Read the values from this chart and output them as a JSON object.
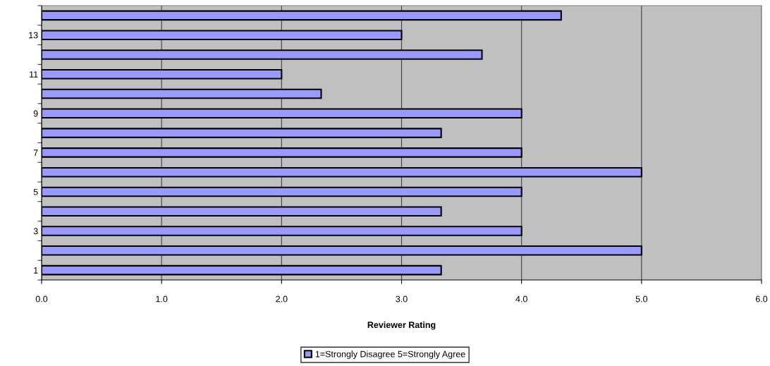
{
  "chart_data": {
    "type": "bar",
    "orientation": "horizontal",
    "xlabel": "Reviewer Rating",
    "categories": [
      null,
      "13",
      null,
      "11",
      null,
      "9",
      null,
      "7",
      null,
      "5",
      null,
      "3",
      null,
      "1"
    ],
    "series": [
      {
        "name": "1=Strongly Disagree 5=Strongly Agree",
        "color": "#9999ff",
        "values": [
          4.33,
          3.0,
          3.67,
          2.0,
          2.33,
          4.0,
          3.33,
          4.0,
          5.0,
          4.0,
          3.33,
          4.0,
          5.0,
          3.33
        ]
      }
    ],
    "xlim": [
      0,
      6
    ],
    "xticks": [
      {
        "value": 0,
        "label": "0.0"
      },
      {
        "value": 1,
        "label": "1.0"
      },
      {
        "value": 2,
        "label": "2.0"
      },
      {
        "value": 3,
        "label": "3.0"
      },
      {
        "value": 4,
        "label": "4.0"
      },
      {
        "value": 5,
        "label": "5.0"
      },
      {
        "value": 6,
        "label": "6.0"
      }
    ],
    "grid": "x",
    "legend": "bottom"
  }
}
